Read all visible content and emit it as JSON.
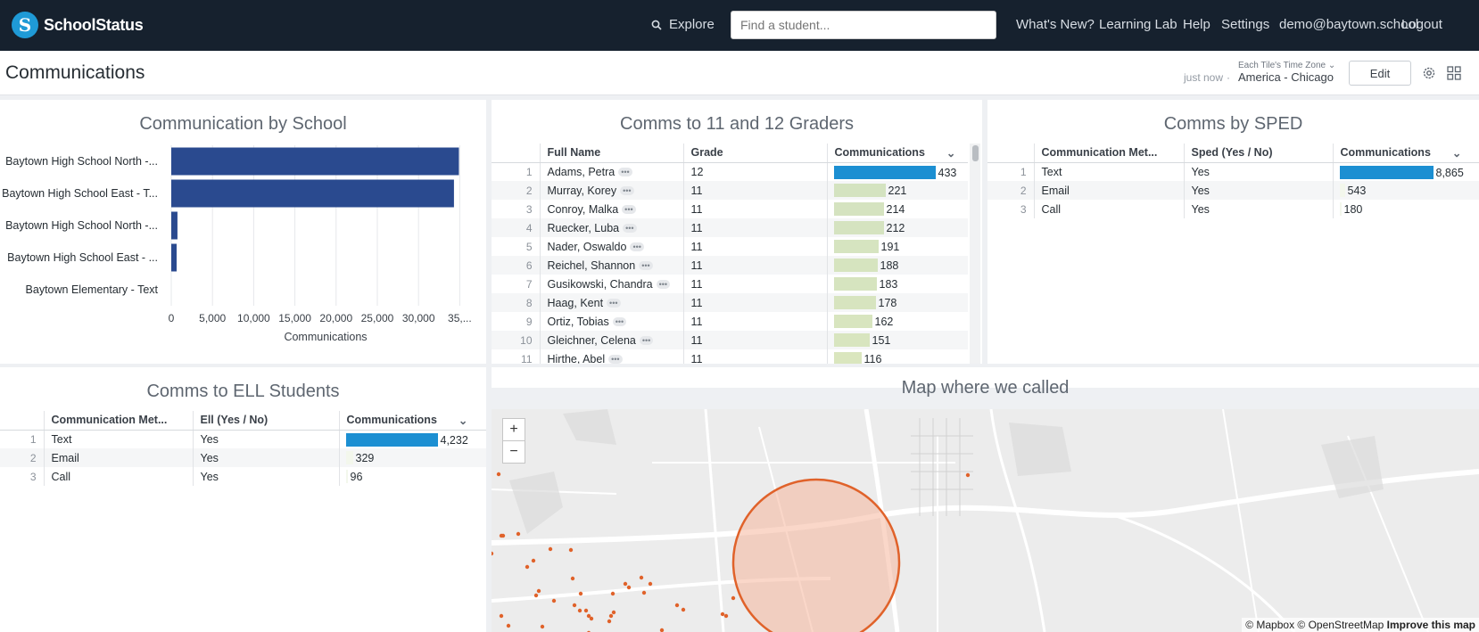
{
  "header": {
    "brand": "SchoolStatus",
    "logo_letter": "S",
    "explore_label": "Explore",
    "search_placeholder": "Find a student...",
    "nav": [
      "What's New?",
      "Learning Lab",
      "Help",
      "Settings",
      "demo@baytown.school",
      "Logout"
    ]
  },
  "subbar": {
    "title": "Communications",
    "updated": "just now",
    "tz_label": "Each Tile's Time Zone",
    "tz_value": "America - Chicago",
    "edit_label": "Edit"
  },
  "comm_by_school": {
    "title": "Communication by School",
    "chart_data": {
      "type": "bar",
      "orientation": "horizontal",
      "categories": [
        "Baytown High School North -...",
        "Baytown High School East - T...",
        "Baytown High School North -...",
        "Baytown High School East - ...",
        "Baytown Elementary - Text"
      ],
      "values": [
        34900,
        34300,
        750,
        650,
        0
      ],
      "xlabel": "Communications",
      "xticks": [
        "0",
        "5,000",
        "10,000",
        "15,000",
        "20,000",
        "25,000",
        "30,000",
        "35,..."
      ],
      "xlim": [
        0,
        35000
      ],
      "grid": true,
      "color": "#2a4a8f"
    }
  },
  "graders": {
    "title": "Comms to 11 and 12 Graders",
    "columns": [
      "Full Name",
      "Grade",
      "Communications"
    ],
    "rows": [
      {
        "n": "1",
        "name": "Adams, Petra",
        "grade": "12",
        "value": 433
      },
      {
        "n": "2",
        "name": "Murray, Korey",
        "grade": "11",
        "value": 221
      },
      {
        "n": "3",
        "name": "Conroy, Malka",
        "grade": "11",
        "value": 214
      },
      {
        "n": "4",
        "name": "Ruecker, Luba",
        "grade": "11",
        "value": 212
      },
      {
        "n": "5",
        "name": "Nader, Oswaldo",
        "grade": "11",
        "value": 191
      },
      {
        "n": "6",
        "name": "Reichel, Shannon",
        "grade": "11",
        "value": 188
      },
      {
        "n": "7",
        "name": "Gusikowski, Chandra",
        "grade": "11",
        "value": 183
      },
      {
        "n": "8",
        "name": "Haag, Kent",
        "grade": "11",
        "value": 178
      },
      {
        "n": "9",
        "name": "Ortiz, Tobias",
        "grade": "11",
        "value": 162
      },
      {
        "n": "10",
        "name": "Gleichner, Celena",
        "grade": "11",
        "value": 151
      },
      {
        "n": "11",
        "name": "Hirthe, Abel",
        "grade": "11",
        "value": 116
      }
    ],
    "max": 433
  },
  "sped": {
    "title": "Comms by SPED",
    "columns": [
      "Communication Met...",
      "Sped (Yes / No)",
      "Communications"
    ],
    "rows": [
      {
        "n": "1",
        "method": "Text",
        "flag": "Yes",
        "value": 8865,
        "label": "8,865"
      },
      {
        "n": "2",
        "method": "Email",
        "flag": "Yes",
        "value": 543,
        "label": "543"
      },
      {
        "n": "3",
        "method": "Call",
        "flag": "Yes",
        "value": 180,
        "label": "180"
      }
    ],
    "max": 8865
  },
  "ell": {
    "title": "Comms to ELL Students",
    "columns": [
      "Communication Met...",
      "Ell (Yes / No)",
      "Communications"
    ],
    "rows": [
      {
        "n": "1",
        "method": "Text",
        "flag": "Yes",
        "value": 4232,
        "label": "4,232"
      },
      {
        "n": "2",
        "method": "Email",
        "flag": "Yes",
        "value": 329,
        "label": "329"
      },
      {
        "n": "3",
        "method": "Call",
        "flag": "Yes",
        "value": 96,
        "label": "96"
      }
    ],
    "max": 4232
  },
  "map": {
    "title": "Map where we called",
    "zoom_in": "+",
    "zoom_out": "−",
    "attribution": "© Mapbox © OpenStreetMap",
    "improve": "Improve this map",
    "marker_color": "#e0622a"
  }
}
